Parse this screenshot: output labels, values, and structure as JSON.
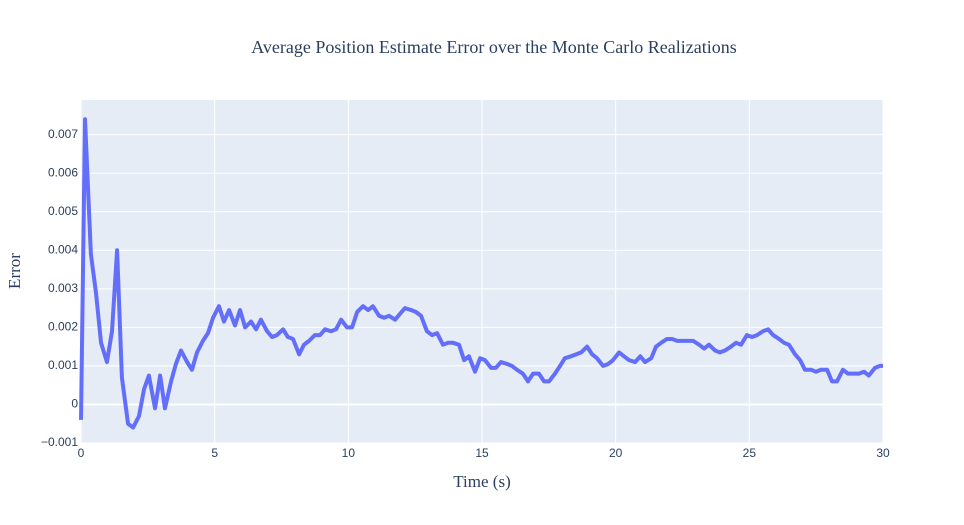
{
  "chart_data": {
    "type": "line",
    "title": "Average Position Estimate Error over the Monte Carlo Realizations",
    "xlabel": "Time (s)",
    "ylabel": "Error",
    "color": "#636efa",
    "grid": true,
    "xlim": [
      0,
      30
    ],
    "xticks": [
      0,
      5,
      10,
      15,
      20,
      25,
      30
    ],
    "ylim": [
      -0.001,
      0.0079
    ],
    "yticks": [
      {
        "value": -0.001,
        "label": "−0.001"
      },
      0,
      0.001,
      0.002,
      0.003,
      0.004,
      0.005,
      0.006,
      0.007
    ],
    "x": [
      0,
      0.15,
      0.37,
      0.56,
      0.75,
      0.97,
      1.16,
      1.35,
      1.53,
      1.76,
      1.95,
      2.17,
      2.36,
      2.54,
      2.77,
      2.96,
      3.14,
      3.37,
      3.55,
      3.74,
      3.97,
      4.15,
      4.34,
      4.56,
      4.75,
      4.94,
      5.16,
      5.35,
      5.54,
      5.76,
      5.95,
      6.14,
      6.36,
      6.55,
      6.73,
      6.96,
      7.15,
      7.33,
      7.56,
      7.74,
      7.93,
      8.16,
      8.34,
      8.53,
      8.75,
      8.94,
      9.13,
      9.35,
      9.54,
      9.73,
      9.95,
      10.14,
      10.33,
      10.55,
      10.74,
      10.92,
      11.15,
      11.34,
      11.52,
      11.75,
      11.93,
      12.12,
      12.35,
      12.53,
      12.72,
      12.94,
      13.13,
      13.32,
      13.54,
      13.73,
      13.92,
      14.14,
      14.33,
      14.51,
      14.74,
      14.93,
      15.11,
      15.34,
      15.52,
      15.71,
      15.94,
      16.12,
      16.31,
      16.53,
      16.72,
      16.91,
      17.13,
      17.32,
      17.51,
      17.73,
      17.92,
      18.1,
      18.33,
      18.52,
      18.71,
      18.93,
      19.12,
      19.3,
      19.53,
      19.72,
      19.9,
      20.13,
      20.31,
      20.5,
      20.73,
      20.92,
      21.1,
      21.33,
      21.51,
      21.7,
      21.92,
      22.11,
      22.3,
      22.52,
      22.71,
      22.9,
      23.12,
      23.31,
      23.49,
      23.72,
      23.9,
      24.09,
      24.31,
      24.5,
      24.69,
      24.91,
      25.1,
      25.29,
      25.51,
      25.7,
      25.89,
      26.11,
      26.3,
      26.48,
      26.71,
      26.9,
      27.08,
      27.31,
      27.49,
      27.68,
      27.91,
      28.09,
      28.28,
      28.5,
      28.69,
      28.88,
      29.1,
      29.29,
      29.47,
      29.7,
      29.89,
      30
    ],
    "values": [
      -0.0004,
      0.0074,
      0.0039,
      0.0029,
      0.0016,
      0.0011,
      0.0019,
      0.004,
      0.0007,
      -0.0005,
      -0.0006,
      -0.0003,
      0.0004,
      0.00075,
      -0.0001,
      0.00075,
      -0.0001,
      0.0006,
      0.00105,
      0.0014,
      0.0011,
      0.0009,
      0.00135,
      0.00165,
      0.00185,
      0.00225,
      0.00255,
      0.00215,
      0.00245,
      0.00205,
      0.00245,
      0.002,
      0.00215,
      0.00195,
      0.0022,
      0.0019,
      0.00175,
      0.0018,
      0.00195,
      0.00175,
      0.0017,
      0.0013,
      0.00155,
      0.00165,
      0.0018,
      0.0018,
      0.00195,
      0.0019,
      0.00195,
      0.0022,
      0.002,
      0.002,
      0.0024,
      0.00255,
      0.00245,
      0.00255,
      0.0023,
      0.00225,
      0.0023,
      0.0022,
      0.00235,
      0.0025,
      0.00245,
      0.0024,
      0.0023,
      0.0019,
      0.0018,
      0.00185,
      0.00155,
      0.0016,
      0.0016,
      0.00155,
      0.00115,
      0.00125,
      0.00085,
      0.0012,
      0.00115,
      0.00095,
      0.00095,
      0.0011,
      0.00105,
      0.001,
      0.0009,
      0.0008,
      0.0006,
      0.0008,
      0.0008,
      0.0006,
      0.0006,
      0.0008,
      0.001,
      0.0012,
      0.00125,
      0.0013,
      0.00135,
      0.0015,
      0.0013,
      0.0012,
      0.001,
      0.00105,
      0.00115,
      0.00135,
      0.00125,
      0.00115,
      0.0011,
      0.00125,
      0.0011,
      0.0012,
      0.0015,
      0.0016,
      0.0017,
      0.0017,
      0.00165,
      0.00165,
      0.00165,
      0.00165,
      0.00155,
      0.00145,
      0.00155,
      0.0014,
      0.00135,
      0.0014,
      0.0015,
      0.0016,
      0.00155,
      0.0018,
      0.00175,
      0.0018,
      0.0019,
      0.00195,
      0.0018,
      0.0017,
      0.0016,
      0.00155,
      0.0013,
      0.00115,
      0.0009,
      0.0009,
      0.00085,
      0.0009,
      0.0009,
      0.0006,
      0.0006,
      0.0009,
      0.0008,
      0.0008,
      0.0008,
      0.00085,
      0.00075,
      0.00095,
      0.001,
      0.001
    ]
  }
}
